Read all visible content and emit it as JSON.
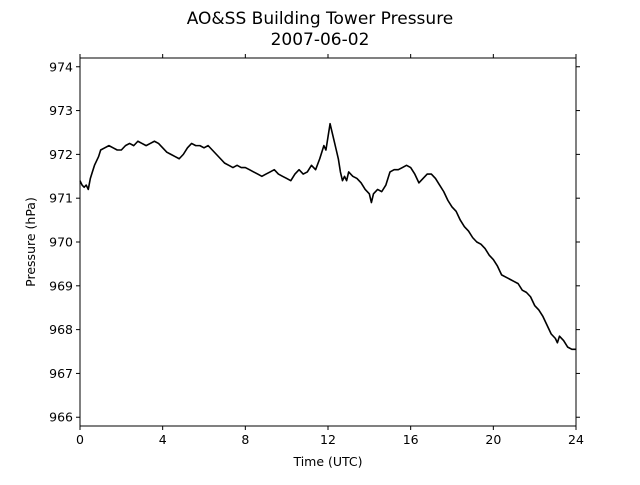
{
  "chart_data": {
    "type": "line",
    "title": "AO&SS Building Tower Pressure",
    "subtitle": "2007-06-02",
    "xlabel": "Time (UTC)",
    "ylabel": "Pressure (hPa)",
    "xlim": [
      0,
      24
    ],
    "ylim": [
      965.8,
      974.2
    ],
    "x_ticks": [
      0,
      4,
      8,
      12,
      16,
      20,
      24
    ],
    "y_ticks": [
      966,
      967,
      968,
      969,
      970,
      971,
      972,
      973,
      974
    ],
    "grid": false,
    "legend": "none",
    "series": [
      {
        "color": "#000000",
        "points": [
          [
            0.0,
            971.4
          ],
          [
            0.1,
            971.3
          ],
          [
            0.2,
            971.25
          ],
          [
            0.3,
            971.3
          ],
          [
            0.4,
            971.2
          ],
          [
            0.5,
            971.45
          ],
          [
            0.6,
            971.6
          ],
          [
            0.7,
            971.75
          ],
          [
            0.8,
            971.85
          ],
          [
            0.9,
            971.95
          ],
          [
            1.0,
            972.1
          ],
          [
            1.2,
            972.15
          ],
          [
            1.4,
            972.2
          ],
          [
            1.6,
            972.15
          ],
          [
            1.8,
            972.1
          ],
          [
            2.0,
            972.1
          ],
          [
            2.2,
            972.2
          ],
          [
            2.4,
            972.25
          ],
          [
            2.6,
            972.2
          ],
          [
            2.8,
            972.3
          ],
          [
            3.0,
            972.25
          ],
          [
            3.2,
            972.2
          ],
          [
            3.4,
            972.25
          ],
          [
            3.6,
            972.3
          ],
          [
            3.8,
            972.25
          ],
          [
            4.0,
            972.15
          ],
          [
            4.2,
            972.05
          ],
          [
            4.4,
            972.0
          ],
          [
            4.6,
            971.95
          ],
          [
            4.8,
            971.9
          ],
          [
            5.0,
            972.0
          ],
          [
            5.2,
            972.15
          ],
          [
            5.4,
            972.25
          ],
          [
            5.6,
            972.2
          ],
          [
            5.8,
            972.2
          ],
          [
            6.0,
            972.15
          ],
          [
            6.2,
            972.2
          ],
          [
            6.4,
            972.1
          ],
          [
            6.6,
            972.0
          ],
          [
            6.8,
            971.9
          ],
          [
            7.0,
            971.8
          ],
          [
            7.2,
            971.75
          ],
          [
            7.4,
            971.7
          ],
          [
            7.6,
            971.75
          ],
          [
            7.8,
            971.7
          ],
          [
            8.0,
            971.7
          ],
          [
            8.2,
            971.65
          ],
          [
            8.4,
            971.6
          ],
          [
            8.6,
            971.55
          ],
          [
            8.8,
            971.5
          ],
          [
            9.0,
            971.55
          ],
          [
            9.2,
            971.6
          ],
          [
            9.4,
            971.65
          ],
          [
            9.6,
            971.55
          ],
          [
            9.8,
            971.5
          ],
          [
            10.0,
            971.45
          ],
          [
            10.2,
            971.4
          ],
          [
            10.4,
            971.55
          ],
          [
            10.6,
            971.65
          ],
          [
            10.8,
            971.55
          ],
          [
            11.0,
            971.6
          ],
          [
            11.2,
            971.75
          ],
          [
            11.4,
            971.65
          ],
          [
            11.6,
            971.9
          ],
          [
            11.8,
            972.2
          ],
          [
            11.9,
            972.1
          ],
          [
            12.0,
            972.4
          ],
          [
            12.1,
            972.7
          ],
          [
            12.2,
            972.5
          ],
          [
            12.3,
            972.3
          ],
          [
            12.4,
            972.1
          ],
          [
            12.5,
            971.9
          ],
          [
            12.6,
            971.6
          ],
          [
            12.7,
            971.4
          ],
          [
            12.8,
            971.5
          ],
          [
            12.9,
            971.4
          ],
          [
            13.0,
            971.6
          ],
          [
            13.2,
            971.5
          ],
          [
            13.4,
            971.45
          ],
          [
            13.6,
            971.35
          ],
          [
            13.8,
            971.2
          ],
          [
            14.0,
            971.1
          ],
          [
            14.1,
            970.9
          ],
          [
            14.2,
            971.1
          ],
          [
            14.4,
            971.2
          ],
          [
            14.6,
            971.15
          ],
          [
            14.8,
            971.3
          ],
          [
            15.0,
            971.6
          ],
          [
            15.2,
            971.65
          ],
          [
            15.4,
            971.65
          ],
          [
            15.6,
            971.7
          ],
          [
            15.8,
            971.75
          ],
          [
            16.0,
            971.7
          ],
          [
            16.2,
            971.55
          ],
          [
            16.4,
            971.35
          ],
          [
            16.6,
            971.45
          ],
          [
            16.8,
            971.55
          ],
          [
            17.0,
            971.55
          ],
          [
            17.2,
            971.45
          ],
          [
            17.4,
            971.3
          ],
          [
            17.6,
            971.15
          ],
          [
            17.8,
            970.95
          ],
          [
            18.0,
            970.8
          ],
          [
            18.2,
            970.7
          ],
          [
            18.4,
            970.5
          ],
          [
            18.6,
            970.35
          ],
          [
            18.8,
            970.25
          ],
          [
            19.0,
            970.1
          ],
          [
            19.2,
            970.0
          ],
          [
            19.4,
            969.95
          ],
          [
            19.6,
            969.85
          ],
          [
            19.8,
            969.7
          ],
          [
            20.0,
            969.6
          ],
          [
            20.2,
            969.45
          ],
          [
            20.4,
            969.25
          ],
          [
            20.6,
            969.2
          ],
          [
            20.8,
            969.15
          ],
          [
            21.0,
            969.1
          ],
          [
            21.2,
            969.05
          ],
          [
            21.4,
            968.9
          ],
          [
            21.6,
            968.85
          ],
          [
            21.8,
            968.75
          ],
          [
            22.0,
            968.55
          ],
          [
            22.2,
            968.45
          ],
          [
            22.4,
            968.3
          ],
          [
            22.6,
            968.1
          ],
          [
            22.8,
            967.9
          ],
          [
            23.0,
            967.8
          ],
          [
            23.1,
            967.7
          ],
          [
            23.2,
            967.85
          ],
          [
            23.4,
            967.75
          ],
          [
            23.6,
            967.6
          ],
          [
            23.8,
            967.55
          ],
          [
            24.0,
            967.55
          ]
        ]
      }
    ]
  }
}
